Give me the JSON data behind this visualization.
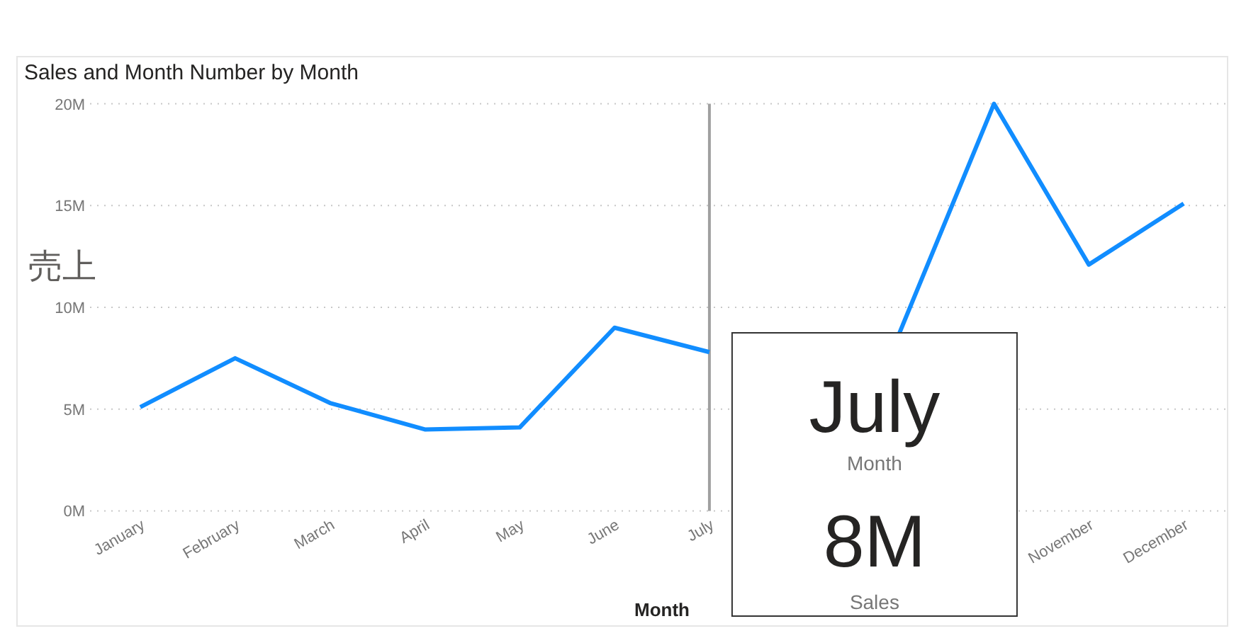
{
  "chart_data": {
    "type": "line",
    "title": "Sales and Month Number by Month",
    "xlabel": "Month",
    "ylabel": "売上",
    "categories": [
      "January",
      "February",
      "March",
      "April",
      "May",
      "June",
      "July",
      null,
      null,
      null,
      "November",
      "December"
    ],
    "series": [
      {
        "color": "#118dff",
        "values": [
          5.1,
          7.5,
          5.3,
          4.0,
          4.1,
          9.0,
          7.8,
          null,
          8.7,
          20.0,
          12.1,
          15.1
        ]
      }
    ],
    "ylim": [
      0,
      20
    ],
    "yticks": [
      {
        "value": 0,
        "label": "0M"
      },
      {
        "value": 5,
        "label": "5M"
      },
      {
        "value": 10,
        "label": "10M"
      },
      {
        "value": 15,
        "label": "15M"
      },
      {
        "value": 20,
        "label": "20M"
      }
    ],
    "grid": "y",
    "ref_lines": [
      {
        "axis": "x",
        "value": "July",
        "color": "#a0a0a0"
      }
    ],
    "annotations": [
      "July",
      "Month",
      "8M",
      "Sales"
    ]
  }
}
